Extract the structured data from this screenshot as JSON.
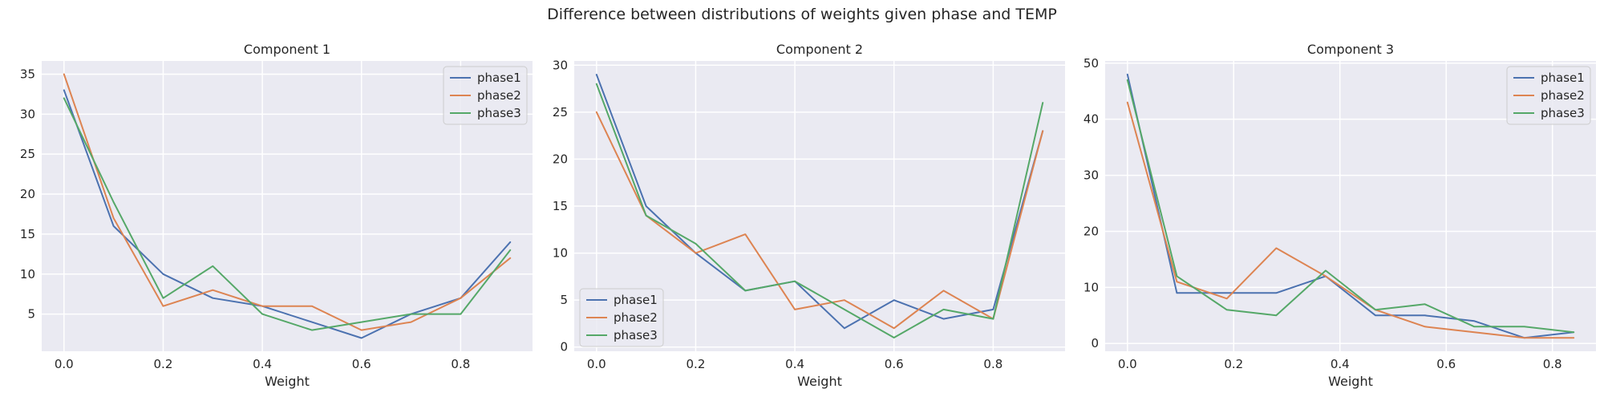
{
  "figure": {
    "title": "Difference between distributions of weights given phase and TEMP"
  },
  "colors": {
    "phase1": "#4c72b0",
    "phase2": "#dd8452",
    "phase3": "#55a868"
  },
  "chart_data": [
    {
      "type": "line",
      "title": "Component 1",
      "xlabel": "Weight",
      "ylabel": "",
      "xlim": [
        -0.045,
        0.945
      ],
      "ylim": [
        0.35,
        36.65
      ],
      "xticks": [
        0.0,
        0.2,
        0.4,
        0.6,
        0.8
      ],
      "xtick_labels": [
        "0.0",
        "0.2",
        "0.4",
        "0.6",
        "0.8"
      ],
      "yticks": [
        5,
        10,
        15,
        20,
        25,
        30,
        35
      ],
      "ytick_labels": [
        "5",
        "10",
        "15",
        "20",
        "25",
        "30",
        "35"
      ],
      "grid": true,
      "legend": "upper right",
      "series": [
        {
          "name": "phase1",
          "x": [
            0.0,
            0.1,
            0.2,
            0.3,
            0.4,
            0.5,
            0.6,
            0.7,
            0.8,
            0.9
          ],
          "y": [
            33,
            16,
            10,
            7,
            6,
            4,
            2,
            5,
            7,
            14
          ]
        },
        {
          "name": "phase2",
          "x": [
            0.0,
            0.1,
            0.2,
            0.3,
            0.4,
            0.5,
            0.6,
            0.7,
            0.8,
            0.9
          ],
          "y": [
            35,
            17,
            6,
            8,
            6,
            6,
            3,
            4,
            7,
            12
          ]
        },
        {
          "name": "phase3",
          "x": [
            0.0,
            0.1,
            0.2,
            0.3,
            0.4,
            0.5,
            0.6,
            0.7,
            0.8,
            0.9
          ],
          "y": [
            32,
            19,
            7,
            11,
            5,
            3,
            4,
            5,
            5,
            13
          ]
        }
      ]
    },
    {
      "type": "line",
      "title": "Component 2",
      "xlabel": "Weight",
      "ylabel": "",
      "xlim": [
        -0.045,
        0.945
      ],
      "ylim": [
        -0.45,
        30.45
      ],
      "xticks": [
        0.0,
        0.2,
        0.4,
        0.6,
        0.8
      ],
      "xtick_labels": [
        "0.0",
        "0.2",
        "0.4",
        "0.6",
        "0.8"
      ],
      "yticks": [
        0,
        5,
        10,
        15,
        20,
        25,
        30
      ],
      "ytick_labels": [
        "0",
        "5",
        "10",
        "15",
        "20",
        "25",
        "30"
      ],
      "grid": true,
      "legend": "lower left",
      "series": [
        {
          "name": "phase1",
          "x": [
            0.0,
            0.1,
            0.2,
            0.3,
            0.4,
            0.5,
            0.6,
            0.7,
            0.8,
            0.9
          ],
          "y": [
            29,
            15,
            10,
            6,
            7,
            2,
            5,
            3,
            4,
            23
          ]
        },
        {
          "name": "phase2",
          "x": [
            0.0,
            0.1,
            0.2,
            0.3,
            0.4,
            0.5,
            0.6,
            0.7,
            0.8,
            0.9
          ],
          "y": [
            25,
            14,
            10,
            12,
            4,
            5,
            2,
            6,
            3,
            23
          ]
        },
        {
          "name": "phase3",
          "x": [
            0.0,
            0.1,
            0.2,
            0.3,
            0.4,
            0.5,
            0.6,
            0.7,
            0.8,
            0.9
          ],
          "y": [
            28,
            14,
            11,
            6,
            7,
            4,
            1,
            4,
            3,
            26
          ]
        }
      ]
    },
    {
      "type": "line",
      "title": "Component 3",
      "xlabel": "Weight",
      "ylabel": "",
      "xlim": [
        -0.042,
        0.882
      ],
      "ylim": [
        -1.4,
        50.4
      ],
      "xticks": [
        0.0,
        0.2,
        0.4,
        0.6,
        0.8
      ],
      "xtick_labels": [
        "0.0",
        "0.2",
        "0.4",
        "0.6",
        "0.8"
      ],
      "yticks": [
        0,
        10,
        20,
        30,
        40,
        50
      ],
      "ytick_labels": [
        "0",
        "10",
        "20",
        "30",
        "40",
        "50"
      ],
      "grid": true,
      "legend": "upper right",
      "series": [
        {
          "name": "phase1",
          "x": [
            0.0,
            0.093,
            0.187,
            0.28,
            0.373,
            0.467,
            0.56,
            0.653,
            0.747,
            0.84
          ],
          "y": [
            48,
            9,
            9,
            9,
            12,
            5,
            5,
            4,
            1,
            2
          ]
        },
        {
          "name": "phase2",
          "x": [
            0.0,
            0.093,
            0.187,
            0.28,
            0.373,
            0.467,
            0.56,
            0.653,
            0.747,
            0.84
          ],
          "y": [
            43,
            11,
            8,
            17,
            12,
            6,
            3,
            2,
            1,
            1
          ]
        },
        {
          "name": "phase3",
          "x": [
            0.0,
            0.093,
            0.187,
            0.28,
            0.373,
            0.467,
            0.56,
            0.653,
            0.747,
            0.84
          ],
          "y": [
            47,
            12,
            6,
            5,
            13,
            6,
            7,
            3,
            3,
            2
          ]
        }
      ]
    }
  ]
}
